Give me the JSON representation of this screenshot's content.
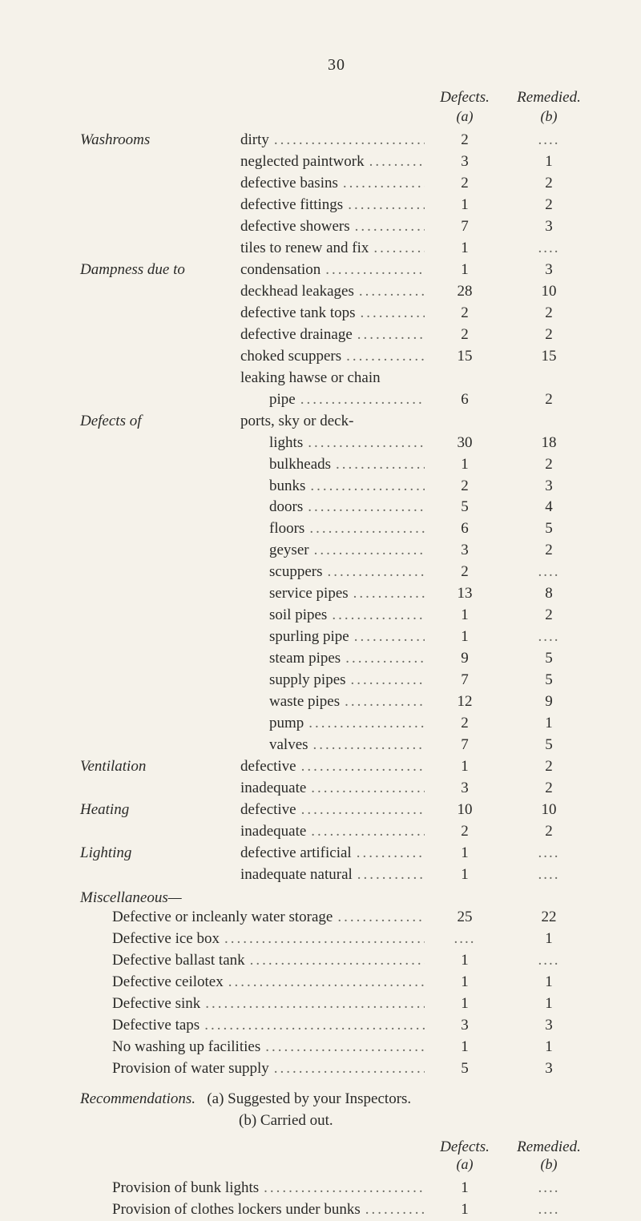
{
  "page_number": "30",
  "headers": {
    "defects": "Defects.",
    "remedied": "Remedied.",
    "col_a": "(a)",
    "col_b": "(b)"
  },
  "sections": [
    {
      "label": "Washrooms",
      "items": [
        {
          "name": "dirty",
          "a": "2",
          "b": "....",
          "b_dots": true
        },
        {
          "name": "neglected paintwork",
          "a": "3",
          "b": "1"
        },
        {
          "name": "defective basins",
          "a": "2",
          "b": "2"
        },
        {
          "name": "defective fittings",
          "a": "1",
          "b": "2"
        },
        {
          "name": "defective showers",
          "a": "7",
          "b": "3"
        },
        {
          "name": "tiles to renew and fix",
          "a": "1",
          "b": "....",
          "b_dots": true
        }
      ]
    },
    {
      "label": "Dampness due to",
      "items": [
        {
          "name": "condensation",
          "a": "1",
          "b": "3"
        },
        {
          "name": "deckhead leakages",
          "a": "28",
          "b": "10"
        },
        {
          "name": "defective tank tops",
          "a": "2",
          "b": "2"
        },
        {
          "name": "defective drainage",
          "a": "2",
          "b": "2"
        },
        {
          "name": "choked scuppers",
          "a": "15",
          "b": "15"
        },
        {
          "name": "leaking hawse or chain",
          "a": "",
          "b": "",
          "no_vals": true
        },
        {
          "name": "pipe",
          "a": "6",
          "b": "2",
          "indent": true
        }
      ]
    },
    {
      "label": "Defects of",
      "items": [
        {
          "name": "ports, sky or deck-",
          "a": "",
          "b": "",
          "no_vals": true
        },
        {
          "name": "lights",
          "a": "30",
          "b": "18",
          "indent": true
        },
        {
          "name": "bulkheads",
          "a": "1",
          "b": "2",
          "indent": true
        },
        {
          "name": "bunks",
          "a": "2",
          "b": "3",
          "indent": true
        },
        {
          "name": "doors",
          "a": "5",
          "b": "4",
          "indent": true
        },
        {
          "name": "floors",
          "a": "6",
          "b": "5",
          "indent": true
        },
        {
          "name": "geyser",
          "a": "3",
          "b": "2",
          "indent": true
        },
        {
          "name": "scuppers",
          "a": "2",
          "b": "....",
          "b_dots": true,
          "indent": true
        },
        {
          "name": "service pipes",
          "a": "13",
          "b": "8",
          "indent": true
        },
        {
          "name": "soil pipes",
          "a": "1",
          "b": "2",
          "indent": true
        },
        {
          "name": "spurling pipe",
          "a": "1",
          "b": "....",
          "b_dots": true,
          "indent": true
        },
        {
          "name": "steam pipes",
          "a": "9",
          "b": "5",
          "indent": true
        },
        {
          "name": "supply pipes",
          "a": "7",
          "b": "5",
          "indent": true
        },
        {
          "name": "waste pipes",
          "a": "12",
          "b": "9",
          "indent": true
        },
        {
          "name": "pump",
          "a": "2",
          "b": "1",
          "indent": true
        },
        {
          "name": "valves",
          "a": "7",
          "b": "5",
          "indent": true
        }
      ]
    },
    {
      "label": "Ventilation",
      "items": [
        {
          "name": "defective",
          "a": "1",
          "b": "2"
        },
        {
          "name": "inadequate",
          "a": "3",
          "b": "2"
        }
      ]
    },
    {
      "label": "Heating",
      "items": [
        {
          "name": "defective",
          "a": "10",
          "b": "10"
        },
        {
          "name": "inadequate",
          "a": "2",
          "b": "2"
        }
      ]
    },
    {
      "label": "Lighting",
      "items": [
        {
          "name": "defective artificial",
          "a": "1",
          "b": "....",
          "b_dots": true
        },
        {
          "name": "inadequate natural",
          "a": "1",
          "b": "....",
          "b_dots": true
        }
      ]
    }
  ],
  "misc": {
    "title": "Miscellaneous—",
    "rows": [
      {
        "label": "Defective or incleanly water storage",
        "a": "25",
        "b": "22"
      },
      {
        "label": "Defective ice box",
        "a": "....",
        "a_dots": true,
        "b": "1"
      },
      {
        "label": "Defective ballast tank",
        "a": "1",
        "b": "....",
        "b_dots": true
      },
      {
        "label": "Defective ceilotex",
        "a": "1",
        "b": "1"
      },
      {
        "label": "Defective sink",
        "a": "1",
        "b": "1"
      },
      {
        "label": "Defective taps",
        "a": "3",
        "b": "3"
      },
      {
        "label": "No washing up facilities",
        "a": "1",
        "b": "1"
      },
      {
        "label": "Provision of water supply",
        "a": "5",
        "b": "3"
      }
    ]
  },
  "recommendations": {
    "label": "Recommendations.",
    "line_a": "(a)  Suggested by your Inspectors.",
    "line_b": "(b)  Carried out."
  },
  "tail": {
    "rows": [
      {
        "label": "Provision of bunk lights",
        "a": "1",
        "b": "....",
        "b_dots": true
      },
      {
        "label": "Provision of clothes lockers under bunks",
        "a": "1",
        "b": "....",
        "b_dots": true
      }
    ]
  }
}
